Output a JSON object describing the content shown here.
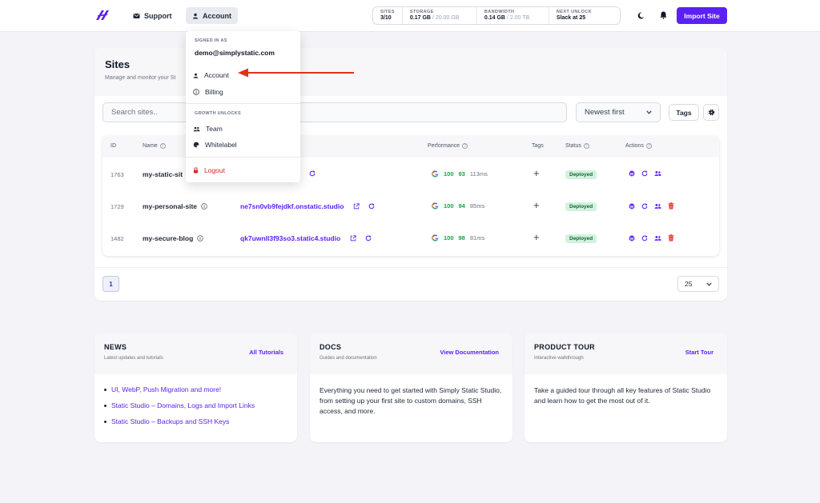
{
  "colors": {
    "accent": "#5b21f2",
    "success": "#16a34a",
    "danger": "#dc2626",
    "annotation_arrow": "#e0301e"
  },
  "header": {
    "logo_icon": "simply-static-logo-icon",
    "support_label": "Support",
    "account_label": "Account",
    "stats": [
      {
        "key": "SITES",
        "value": "3/10",
        "total": ""
      },
      {
        "key": "STORAGE",
        "value": "0.17 GB",
        "total": " / 20.00 GB"
      },
      {
        "key": "BANDWIDTH",
        "value": "0.14 GB",
        "total": " / 2.00 TB"
      },
      {
        "key": "NEXT UNLOCK",
        "value": "Slack at 25",
        "total": ""
      }
    ],
    "import_label": "Import Site"
  },
  "account_menu": {
    "signed_in_label": "SIGNED IN AS",
    "email": "demo@simplystatic.com",
    "account": "Account",
    "billing": "Billing",
    "growth_label": "GROWTH UNLOCKS",
    "team": "Team",
    "whitelabel": "Whitelabel",
    "logout": "Logout"
  },
  "sites": {
    "title": "Sites",
    "subtitle": "Manage and monitor your St",
    "search_placeholder": "Search sites..",
    "sort_value": "Newest first",
    "tags_label": "Tags",
    "columns": {
      "id": "ID",
      "name": "Name",
      "performance": "Performance",
      "tags": "Tags",
      "status": "Status",
      "actions": "Actions"
    },
    "rows": [
      {
        "id": "1763",
        "name": "my-static-sit",
        "url": "",
        "score1": "100",
        "score2": "93",
        "ms": "113ms",
        "status": "Deployed"
      },
      {
        "id": "1729",
        "name": "my-personal-site",
        "url": "ne7sn0vb9fejdkf.onstatic.studio",
        "score1": "100",
        "score2": "94",
        "ms": "85ms",
        "status": "Deployed"
      },
      {
        "id": "1482",
        "name": "my-secure-blog",
        "url": "qk7uwnll3f93so3.static4.studio",
        "score1": "100",
        "score2": "98",
        "ms": "81ms",
        "status": "Deployed"
      }
    ],
    "page": "1",
    "per_page": "25"
  },
  "news": {
    "title": "NEWS",
    "subtitle": "Latest updates and tutorials",
    "link": "All Tutorials",
    "items": [
      "UI, WebP, Push Migration and more!",
      "Static Studio – Domains, Logs and Import Links",
      "Static Studio – Backups and SSH Keys"
    ]
  },
  "docs": {
    "title": "DOCS",
    "subtitle": "Guides and documentation",
    "link": "View Documentation",
    "body": "Everything you need to get started with Simply Static Studio, from setting up your first site to custom domains, SSH access, and more."
  },
  "tour": {
    "title": "PRODUCT TOUR",
    "subtitle": "Interactive walkthrough",
    "link": "Start Tour",
    "body": "Take a guided tour through all key features of Static Studio and learn how to get the most out of it."
  }
}
